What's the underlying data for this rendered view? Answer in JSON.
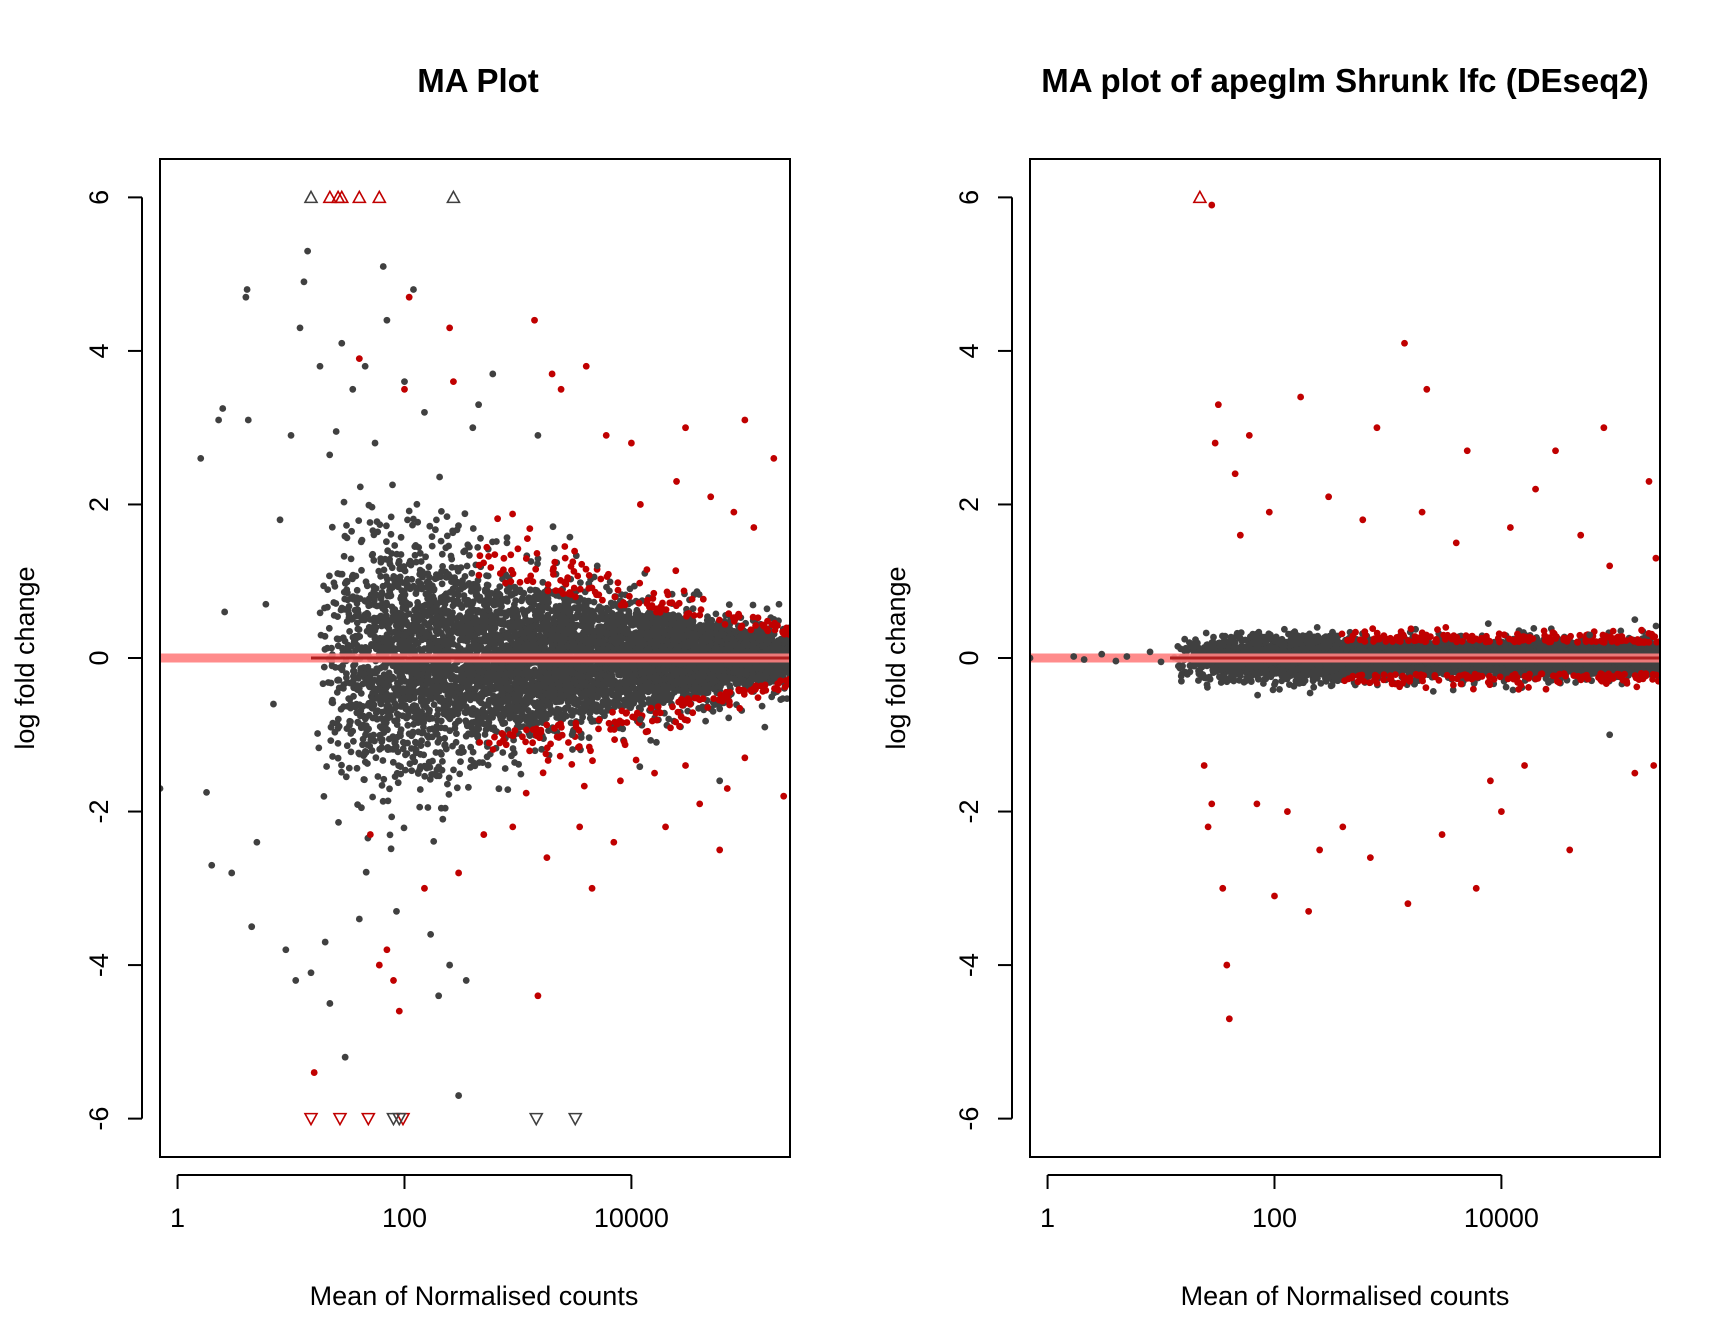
{
  "colors": {
    "non_significant": "#404040",
    "significant": "#c00000",
    "zero_line": "#ff7f7f",
    "zero_line_dark": "#b02020"
  },
  "chart_data": [
    {
      "type": "scatter",
      "title": "MA Plot",
      "xlabel": "Mean of Normalised counts",
      "ylabel": "log fold change",
      "x_scale": "log10",
      "xlim": [
        0.7,
        250000
      ],
      "ylim": [
        -6.5,
        6.5
      ],
      "x_ticks": [
        1,
        100,
        10000
      ],
      "x_tick_labels": [
        "1",
        "100",
        "10000"
      ],
      "y_ticks": [
        -6,
        -4,
        -2,
        0,
        2,
        4,
        6
      ],
      "y_tick_labels": [
        "-6",
        "-4",
        "-2",
        "0",
        "2",
        "4",
        "6"
      ],
      "grid": false,
      "reference_line_y": 0,
      "series": [
        {
          "role": "non-significant",
          "marker": "point",
          "points": [
            [
              0.7,
              -1.7
            ],
            [
              1.6,
              2.6
            ],
            [
              1.8,
              -1.75
            ],
            [
              2,
              -2.7
            ],
            [
              2.3,
              3.1
            ],
            [
              2.5,
              3.25
            ],
            [
              2.6,
              0.6
            ],
            [
              3,
              -2.8
            ],
            [
              4,
              4.7
            ],
            [
              4.1,
              4.8
            ],
            [
              4.5,
              -3.5
            ],
            [
              4.2,
              3.1
            ],
            [
              5,
              -2.4
            ],
            [
              6,
              0.7
            ],
            [
              7,
              -0.6
            ],
            [
              8,
              1.8
            ],
            [
              9,
              -3.8
            ],
            [
              10,
              2.9
            ],
            [
              11,
              -4.2
            ],
            [
              12,
              4.3
            ],
            [
              13,
              4.9
            ],
            [
              14,
              5.3
            ],
            [
              15,
              -4.1
            ],
            [
              18,
              3.8
            ],
            [
              20,
              -3.7
            ],
            [
              22,
              -4.5
            ],
            [
              25,
              2.95
            ],
            [
              28,
              4.1
            ],
            [
              30,
              -5.2
            ],
            [
              35,
              3.5
            ],
            [
              40,
              -3.4
            ],
            [
              45,
              3.8
            ],
            [
              55,
              2.8
            ],
            [
              65,
              5.1
            ],
            [
              70,
              4.4
            ],
            [
              85,
              -3.3
            ],
            [
              100,
              3.6
            ],
            [
              120,
              4.8
            ],
            [
              150,
              3.2
            ],
            [
              170,
              -3.6
            ],
            [
              200,
              -4.4
            ],
            [
              250,
              -4.0
            ],
            [
              300,
              -5.7
            ],
            [
              350,
              -4.2
            ],
            [
              400,
              3.0
            ],
            [
              450,
              3.3
            ],
            [
              600,
              3.7
            ],
            [
              800,
              1.5
            ],
            [
              1500,
              2.9
            ],
            [
              3000,
              -1.0
            ],
            [
              5000,
              1.2
            ],
            [
              12000,
              -0.8
            ],
            [
              60000,
              -1.6
            ],
            [
              150000,
              -0.9
            ],
            [
              200000,
              0.7
            ]
          ]
        },
        {
          "role": "significant",
          "marker": "point",
          "points": [
            [
              16,
              -5.4
            ],
            [
              40,
              3.9
            ],
            [
              60,
              -4.0
            ],
            [
              70,
              -3.8
            ],
            [
              80,
              -4.2
            ],
            [
              90,
              -4.6
            ],
            [
              100,
              3.5
            ],
            [
              110,
              4.7
            ],
            [
              250,
              4.3
            ],
            [
              270,
              3.6
            ],
            [
              1400,
              4.4
            ],
            [
              1500,
              -4.4
            ],
            [
              2000,
              3.7
            ],
            [
              2400,
              3.5
            ],
            [
              4000,
              3.8
            ],
            [
              4500,
              -3.0
            ],
            [
              6000,
              2.9
            ],
            [
              10000,
              2.8
            ],
            [
              30000,
              3.0
            ],
            [
              60000,
              -2.5
            ],
            [
              100000,
              3.1
            ],
            [
              180000,
              2.6
            ],
            [
              220000,
              -1.8
            ],
            [
              50,
              -2.3
            ],
            [
              150,
              -3.0
            ],
            [
              300,
              -2.8
            ],
            [
              500,
              -2.3
            ],
            [
              900,
              -2.2
            ],
            [
              1800,
              -2.6
            ],
            [
              3500,
              -2.2
            ],
            [
              7000,
              -2.4
            ],
            [
              20000,
              -2.2
            ],
            [
              40000,
              -1.9
            ],
            [
              12000,
              2.0
            ],
            [
              25000,
              2.3
            ],
            [
              50000,
              2.1
            ],
            [
              80000,
              1.9
            ],
            [
              120000,
              1.7
            ],
            [
              8000,
              -1.6
            ],
            [
              16000,
              -1.5
            ],
            [
              30000,
              -1.4
            ],
            [
              70000,
              -1.7
            ],
            [
              100000,
              -1.3
            ]
          ]
        },
        {
          "role": "non-significant",
          "marker": "triangle-up",
          "note_direction": "up",
          "points": [
            [
              15,
              6
            ],
            [
              270,
              6
            ]
          ]
        },
        {
          "role": "significant",
          "marker": "triangle-up",
          "note_direction": "up",
          "points": [
            [
              22,
              6
            ],
            [
              26,
              6
            ],
            [
              28,
              6
            ],
            [
              40,
              6
            ],
            [
              60,
              6
            ]
          ]
        },
        {
          "role": "significant",
          "marker": "triangle-down",
          "note_direction": "down",
          "points": [
            [
              15,
              -6
            ],
            [
              27,
              -6
            ],
            [
              48,
              -6
            ],
            [
              97,
              -6
            ]
          ]
        },
        {
          "role": "non-significant",
          "marker": "triangle-down",
          "note_direction": "down",
          "points": [
            [
              80,
              -6
            ],
            [
              90,
              -6
            ],
            [
              1450,
              -6
            ],
            [
              3200,
              -6
            ]
          ]
        }
      ],
      "bulk_cloud": {
        "role": "non-significant",
        "x_range": [
          15,
          250000
        ],
        "center_y": 0.0,
        "spread_at_low_x": 1.6,
        "spread_at_high_x": 0.3,
        "significant_fraction_high_x": 0.06
      }
    },
    {
      "type": "scatter",
      "title": "MA plot of apeglm Shrunk lfc (DEseq2)",
      "xlabel": "Mean of Normalised counts",
      "ylabel": "log fold change",
      "x_scale": "log10",
      "xlim": [
        0.7,
        250000
      ],
      "ylim": [
        -6.5,
        6.5
      ],
      "x_ticks": [
        1,
        100,
        10000
      ],
      "x_tick_labels": [
        "1",
        "100",
        "10000"
      ],
      "y_ticks": [
        -6,
        -4,
        -2,
        0,
        2,
        4,
        6
      ],
      "y_tick_labels": [
        "-6",
        "-4",
        "-2",
        "0",
        "2",
        "4",
        "6"
      ],
      "grid": false,
      "reference_line_y": 0,
      "series": [
        {
          "role": "non-significant",
          "marker": "point",
          "points": [
            [
              0.7,
              0
            ],
            [
              1.7,
              0.02
            ],
            [
              2.1,
              -0.02
            ],
            [
              3,
              0.05
            ],
            [
              4,
              -0.04
            ],
            [
              5,
              0.02
            ],
            [
              8,
              0.08
            ],
            [
              10,
              -0.05
            ],
            [
              16,
              0.1
            ],
            [
              18,
              -0.1
            ],
            [
              20,
              0.2
            ],
            [
              60000,
              0.3
            ],
            [
              90000,
              -1.0
            ],
            [
              150000,
              0.5
            ]
          ]
        },
        {
          "role": "significant",
          "marker": "point",
          "points": [
            [
              28,
              5.9
            ],
            [
              32,
              3.3
            ],
            [
              30,
              2.8
            ],
            [
              35,
              -3.0
            ],
            [
              38,
              -4.0
            ],
            [
              40,
              -4.7
            ],
            [
              24,
              -1.4
            ],
            [
              26,
              -2.2
            ],
            [
              28,
              -1.9
            ],
            [
              45,
              2.4
            ],
            [
              60,
              2.9
            ],
            [
              100,
              -3.1
            ],
            [
              170,
              3.4
            ],
            [
              200,
              -3.3
            ],
            [
              800,
              3.0
            ],
            [
              1400,
              4.1
            ],
            [
              1500,
              -3.2
            ],
            [
              2200,
              3.5
            ],
            [
              5000,
              2.7
            ],
            [
              6000,
              -3.0
            ],
            [
              30000,
              2.7
            ],
            [
              80000,
              3.0
            ],
            [
              220000,
              -1.4
            ],
            [
              200000,
              2.3
            ],
            [
              230000,
              1.3
            ],
            [
              40000,
              -2.5
            ],
            [
              20000,
              2.2
            ],
            [
              12000,
              1.7
            ],
            [
              10000,
              -2.0
            ],
            [
              3000,
              -2.3
            ],
            [
              700,
              -2.6
            ],
            [
              400,
              -2.2
            ],
            [
              250,
              -2.5
            ],
            [
              130,
              -2.0
            ],
            [
              70,
              -1.9
            ],
            [
              50,
              1.6
            ],
            [
              90,
              1.9
            ],
            [
              300,
              2.1
            ],
            [
              600,
              1.8
            ],
            [
              2000,
              1.9
            ],
            [
              4000,
              1.5
            ],
            [
              8000,
              -1.6
            ],
            [
              16000,
              -1.4
            ],
            [
              50000,
              1.6
            ],
            [
              90000,
              1.2
            ],
            [
              150000,
              -1.5
            ]
          ]
        },
        {
          "role": "significant",
          "marker": "triangle-up",
          "note_direction": "up",
          "points": [
            [
              22,
              6
            ]
          ]
        }
      ],
      "bulk_cloud": {
        "role": "non-significant",
        "x_range": [
          12,
          250000
        ],
        "center_y": 0.0,
        "spread_at_low_x": 0.25,
        "spread_at_high_x": 0.22,
        "significant_fraction_high_x": 0.08
      }
    }
  ]
}
